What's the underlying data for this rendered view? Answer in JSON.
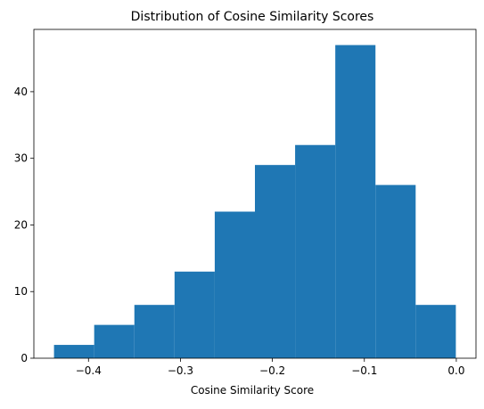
{
  "chart_data": {
    "type": "bar",
    "title": "Distribution of Cosine Similarity Scores",
    "xlabel": "Cosine Similarity Score",
    "ylabel": "",
    "bins": [
      {
        "start": -0.4375,
        "end": -0.3938,
        "count": 2
      },
      {
        "start": -0.3938,
        "end": -0.3501,
        "count": 5
      },
      {
        "start": -0.3501,
        "end": -0.3064,
        "count": 8
      },
      {
        "start": -0.3064,
        "end": -0.2627,
        "count": 13
      },
      {
        "start": -0.2627,
        "end": -0.219,
        "count": 22
      },
      {
        "start": -0.219,
        "end": -0.1753,
        "count": 29
      },
      {
        "start": -0.1753,
        "end": -0.1316,
        "count": 32
      },
      {
        "start": -0.1316,
        "end": -0.0879,
        "count": 47
      },
      {
        "start": -0.0879,
        "end": -0.0442,
        "count": 26
      },
      {
        "start": -0.0442,
        "end": -0.0005,
        "count": 8
      }
    ],
    "xlim": [
      -0.4594,
      0.0214
    ],
    "ylim": [
      0,
      49.35
    ],
    "xticks": [
      {
        "value": -0.4,
        "label": "−0.4"
      },
      {
        "value": -0.3,
        "label": "−0.3"
      },
      {
        "value": -0.2,
        "label": "−0.2"
      },
      {
        "value": -0.1,
        "label": "−0.1"
      },
      {
        "value": 0.0,
        "label": "0.0"
      }
    ],
    "yticks": [
      {
        "value": 0,
        "label": "0"
      },
      {
        "value": 10,
        "label": "10"
      },
      {
        "value": 20,
        "label": "20"
      },
      {
        "value": 30,
        "label": "30"
      },
      {
        "value": 40,
        "label": "40"
      }
    ],
    "bar_color": "#1f77b4",
    "grid": false
  }
}
